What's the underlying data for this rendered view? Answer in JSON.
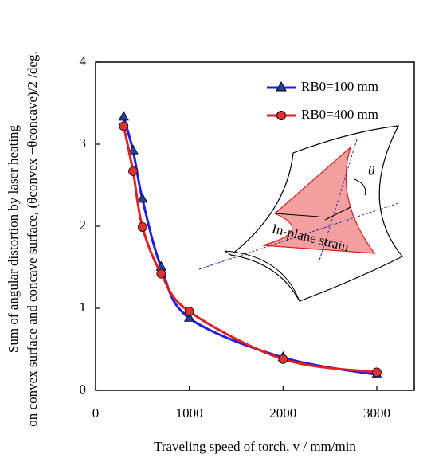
{
  "chart_data": {
    "type": "line",
    "xlabel": "Traveling speed of torch, v / mm/min",
    "ylabel": [
      "Sum of angular distortion by laser heating",
      "on convex surface and concave surface, (θconvex +θconcave)/2 /deg."
    ],
    "x": [
      300,
      400,
      500,
      700,
      1000,
      2000,
      3000
    ],
    "series": [
      {
        "name": "RB0=100 mm",
        "color": "#1f1fe0",
        "marker": "triangle",
        "values": [
          3.33,
          2.92,
          2.33,
          1.5,
          0.88,
          0.4,
          0.19
        ]
      },
      {
        "name": "RB0=400 mm",
        "color": "#e01f1f",
        "marker": "circle",
        "values": [
          3.22,
          2.67,
          1.99,
          1.42,
          0.96,
          0.38,
          0.22
        ]
      }
    ],
    "xlim": [
      0,
      3400
    ],
    "xticks": [
      0,
      1000,
      2000,
      3000
    ],
    "ylim": [
      0,
      4
    ],
    "yticks": [
      0,
      1,
      2,
      3,
      4
    ],
    "annotations": [
      "θ",
      "In-plane strain"
    ]
  }
}
